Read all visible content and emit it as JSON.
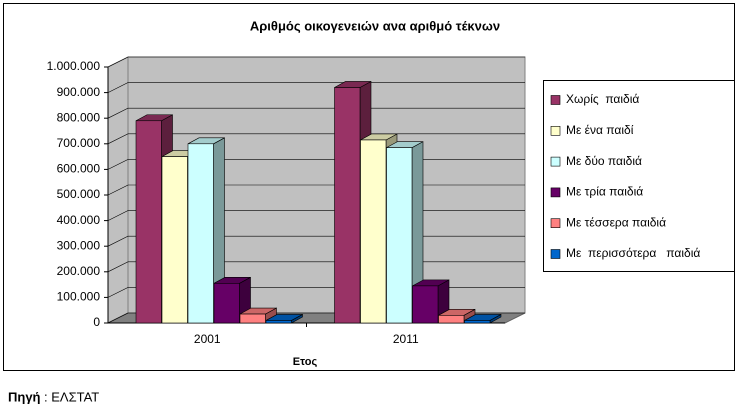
{
  "chart_data": {
    "type": "bar3d",
    "title": "Αριθμός οικογενειών ανα αριθμό τέκνων",
    "x_label": "Ετος",
    "categories": [
      "2001",
      "2011"
    ],
    "series": [
      {
        "name": "Χωρίς  παιδιά",
        "color": "#993366",
        "values": [
          790000,
          920000
        ]
      },
      {
        "name": "Με ένα παιδί",
        "color": "#FFFFCC",
        "values": [
          650000,
          715000
        ]
      },
      {
        "name": "Με δύο παιδιά",
        "color": "#CCFFFF",
        "values": [
          700000,
          685000
        ]
      },
      {
        "name": "Με τρία παιδιά",
        "color": "#660066",
        "values": [
          155000,
          145000
        ]
      },
      {
        "name": "Με τέσσερα παιδιά",
        "color": "#FF8080",
        "values": [
          35000,
          30000
        ]
      },
      {
        "name": "Με  περισσότερα   παιδιά",
        "color": "#0066CC",
        "values": [
          10000,
          10000
        ]
      }
    ],
    "ylim": [
      0,
      1000000
    ],
    "yticks": [
      0,
      {
        "value": 100000,
        "label": "100.000"
      },
      {
        "value": 200000,
        "label": "200.000"
      },
      {
        "value": 300000,
        "label": "300.000"
      },
      {
        "value": 400000,
        "label": "400.000"
      },
      {
        "value": 500000,
        "label": "500.000"
      },
      {
        "value": 600000,
        "label": "600.000"
      },
      {
        "value": 700000,
        "label": "700.000"
      },
      {
        "value": 800000,
        "label": "800.000"
      },
      {
        "value": 900000,
        "label": "900.000"
      },
      {
        "value": 1000000,
        "label": "1.000.000"
      }
    ],
    "grid": true,
    "legend": "right"
  },
  "source_label": "Πηγή",
  "source": ": ΕΛΣΤΑΤ"
}
